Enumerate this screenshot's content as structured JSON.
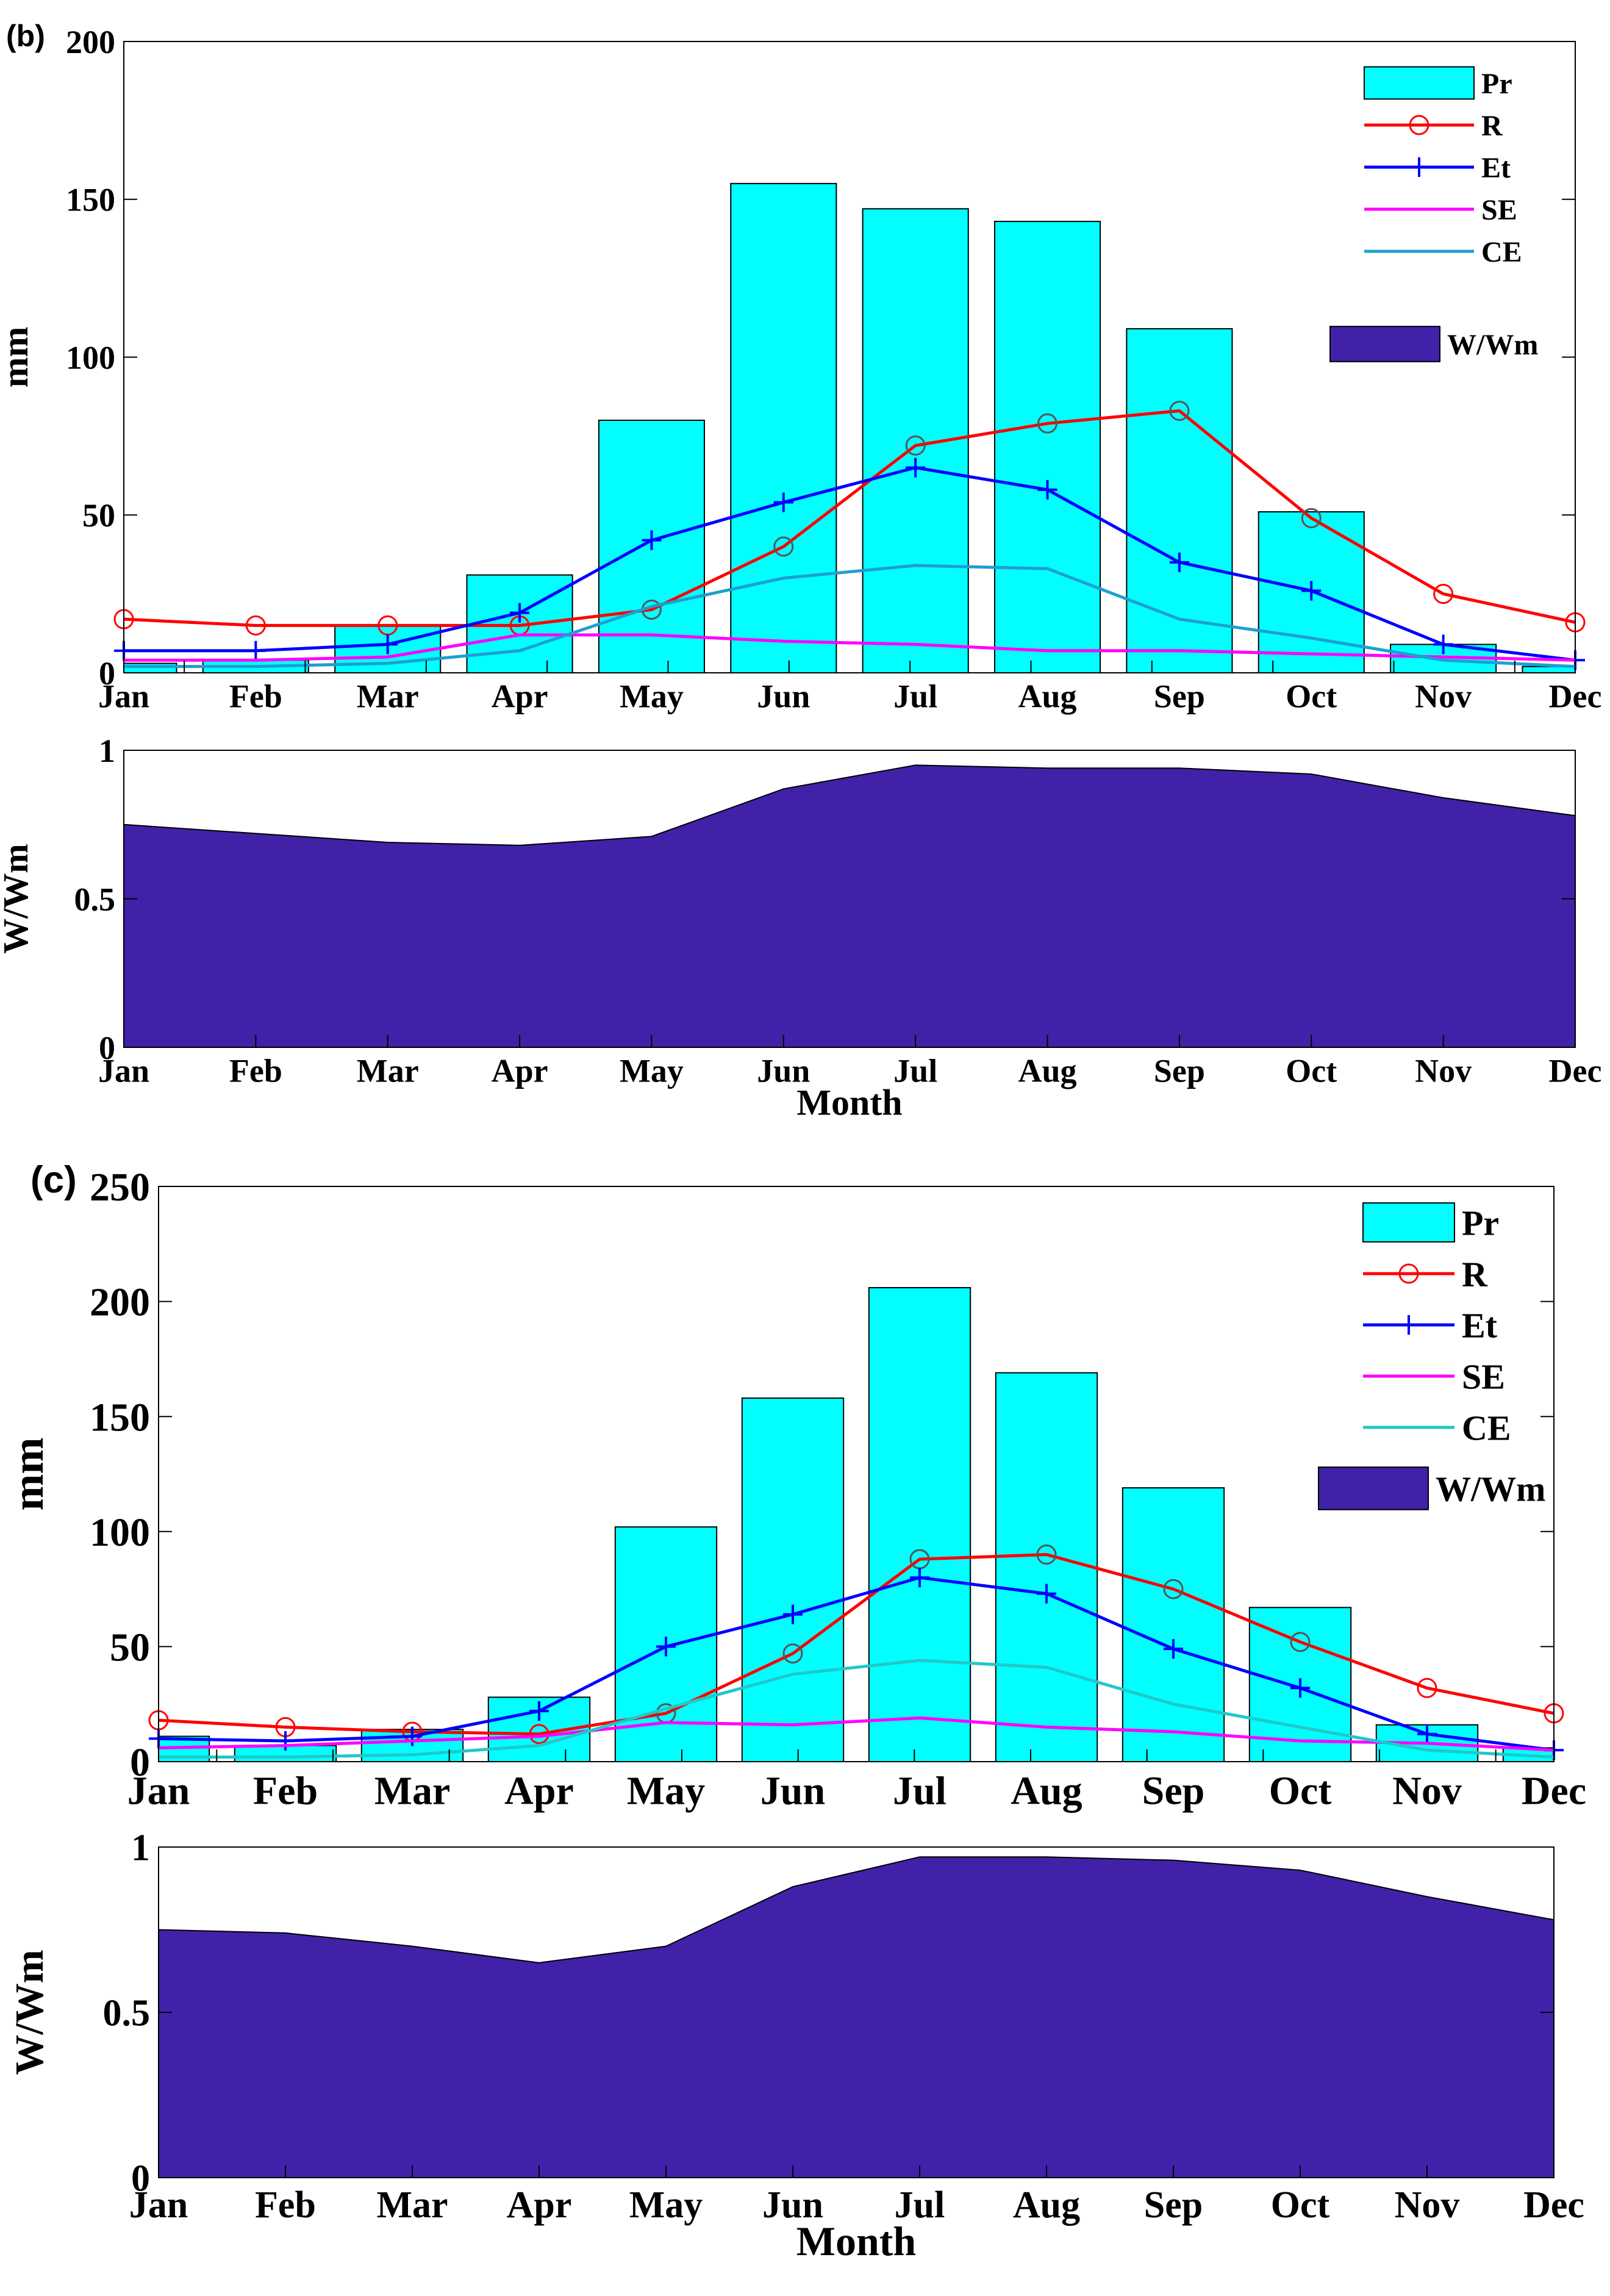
{
  "chart_data": [
    {
      "type": "bar+line",
      "panel_label": "(b)",
      "categories": [
        "Jan",
        "Feb",
        "Mar",
        "Apr",
        "May",
        "Jun",
        "Jul",
        "Aug",
        "Sep",
        "Oct",
        "Nov",
        "Dec"
      ],
      "ylabel": "mm",
      "ylim": [
        0,
        200
      ],
      "yticks": [
        0,
        50,
        100,
        150,
        200
      ],
      "legend_position": "top-right",
      "bars": {
        "name": "Pr",
        "color": "#00FFFF",
        "values": [
          3,
          4,
          15,
          31,
          80,
          155,
          147,
          143,
          109,
          51,
          9,
          2
        ]
      },
      "series": [
        {
          "name": "R",
          "color": "#FF0000",
          "marker": "circle",
          "values": [
            17,
            15,
            15,
            15,
            20,
            40,
            72,
            79,
            83,
            49,
            25,
            16
          ]
        },
        {
          "name": "Et",
          "color": "#0000FF",
          "marker": "plus",
          "values": [
            7,
            7,
            9,
            19,
            42,
            54,
            65,
            58,
            35,
            26,
            9,
            4
          ]
        },
        {
          "name": "SE",
          "color": "#FF00FF",
          "marker": "none",
          "values": [
            4,
            4,
            5,
            12,
            12,
            10,
            9,
            7,
            7,
            6,
            5,
            4
          ]
        },
        {
          "name": "CE",
          "color": "#1E9FD0",
          "marker": "none",
          "values": [
            2,
            2,
            3,
            7,
            21,
            30,
            34,
            33,
            17,
            11,
            4,
            2
          ]
        }
      ],
      "extra_legend": {
        "name": "W/Wm",
        "color": "#4121A8"
      }
    },
    {
      "type": "area",
      "categories": [
        "Jan",
        "Feb",
        "Mar",
        "Apr",
        "May",
        "Jun",
        "Jul",
        "Aug",
        "Sep",
        "Oct",
        "Nov",
        "Dec"
      ],
      "xlabel": "Month",
      "ylabel": "W/Wm",
      "ylim": [
        0,
        1
      ],
      "yticks": [
        0,
        0.5,
        1
      ],
      "ytick_labels": [
        "0",
        "0.5",
        "1"
      ],
      "color": "#4121A8",
      "values": [
        0.75,
        0.72,
        0.69,
        0.68,
        0.71,
        0.87,
        0.95,
        0.94,
        0.94,
        0.92,
        0.84,
        0.78
      ]
    },
    {
      "type": "bar+line",
      "panel_label": "(c)",
      "categories": [
        "Jan",
        "Feb",
        "Mar",
        "Apr",
        "May",
        "Jun",
        "Jul",
        "Aug",
        "Sep",
        "Oct",
        "Nov",
        "Dec"
      ],
      "ylabel": "mm",
      "ylim": [
        0,
        250
      ],
      "yticks": [
        0,
        50,
        100,
        150,
        200,
        250
      ],
      "legend_position": "top-right",
      "bars": {
        "name": "Pr",
        "color": "#00FFFF",
        "values": [
          11,
          7,
          14,
          28,
          102,
          158,
          206,
          169,
          119,
          67,
          16,
          6
        ]
      },
      "series": [
        {
          "name": "R",
          "color": "#FF0000",
          "marker": "circle",
          "values": [
            18,
            15,
            13,
            12,
            21,
            47,
            88,
            90,
            75,
            52,
            32,
            21
          ]
        },
        {
          "name": "Et",
          "color": "#0000FF",
          "marker": "plus",
          "values": [
            10,
            9,
            11,
            22,
            50,
            64,
            80,
            73,
            49,
            32,
            12,
            5
          ]
        },
        {
          "name": "SE",
          "color": "#FF00FF",
          "marker": "none",
          "values": [
            6,
            7,
            9,
            11,
            17,
            16,
            19,
            15,
            13,
            9,
            8,
            5
          ]
        },
        {
          "name": "CE",
          "color": "#20C8C8",
          "marker": "none",
          "values": [
            2,
            2,
            3,
            7,
            23,
            38,
            44,
            41,
            25,
            15,
            5,
            2
          ]
        }
      ],
      "extra_legend": {
        "name": "W/Wm",
        "color": "#4121A8"
      }
    },
    {
      "type": "area",
      "categories": [
        "Jan",
        "Feb",
        "Mar",
        "Apr",
        "May",
        "Jun",
        "Jul",
        "Aug",
        "Sep",
        "Oct",
        "Nov",
        "Dec"
      ],
      "xlabel": "Month",
      "ylabel": "W/Wm",
      "ylim": [
        0,
        1
      ],
      "yticks": [
        0,
        0.5,
        1
      ],
      "ytick_labels": [
        "0",
        "0.5",
        "1"
      ],
      "color": "#4121A8",
      "values": [
        0.75,
        0.74,
        0.7,
        0.65,
        0.7,
        0.88,
        0.97,
        0.97,
        0.96,
        0.93,
        0.85,
        0.78
      ]
    }
  ]
}
